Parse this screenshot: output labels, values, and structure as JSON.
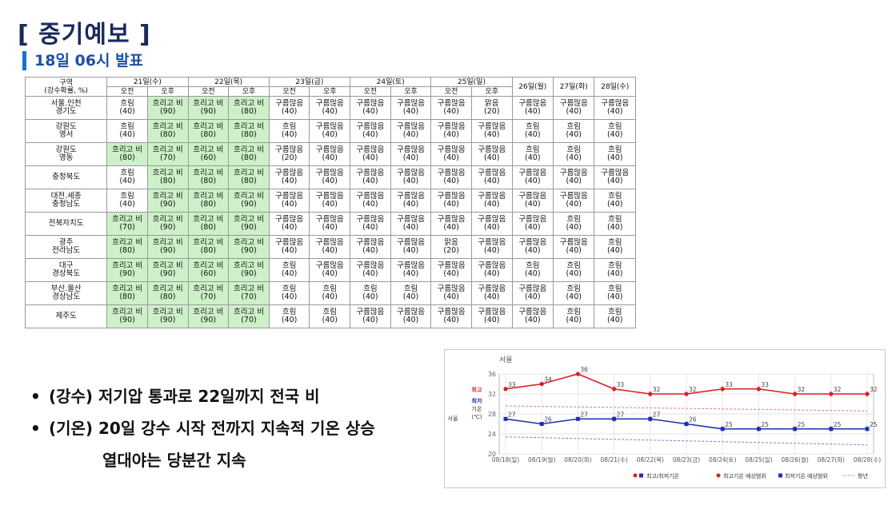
{
  "title": "[ 중기예보 ]",
  "subtitle": "18일 06시 발표",
  "table": {
    "region_header": "구역\n(강수확률, %)",
    "am": "오전",
    "pm": "오후",
    "split_days": [
      "21일(수)",
      "22일(목)",
      "23일(금)",
      "24일(토)",
      "25일(일)"
    ],
    "single_days": [
      "26일(월)",
      "27일(화)",
      "28일(수)"
    ],
    "rows": [
      {
        "region": "서울.인천\n경기도",
        "cells": [
          [
            "흐림",
            "40"
          ],
          [
            "흐리고 비",
            "90"
          ],
          [
            "흐리고 비",
            "90"
          ],
          [
            "흐리고 비",
            "80"
          ],
          [
            "구름많음",
            "40"
          ],
          [
            "구름많음",
            "40"
          ],
          [
            "구름많음",
            "40"
          ],
          [
            "구름많음",
            "40"
          ],
          [
            "구름많음",
            "40"
          ],
          [
            "맑음",
            "20"
          ],
          [
            "구름많음",
            "40"
          ],
          [
            "구름많음",
            "40"
          ],
          [
            "구름많음",
            "40"
          ]
        ]
      },
      {
        "region": "강원도\n영서",
        "cells": [
          [
            "흐림",
            "40"
          ],
          [
            "흐리고 비",
            "80"
          ],
          [
            "흐리고 비",
            "80"
          ],
          [
            "흐리고 비",
            "80"
          ],
          [
            "흐림",
            "40"
          ],
          [
            "구름많음",
            "40"
          ],
          [
            "구름많음",
            "40"
          ],
          [
            "구름많음",
            "40"
          ],
          [
            "구름많음",
            "40"
          ],
          [
            "구름많음",
            "40"
          ],
          [
            "흐림",
            "40"
          ],
          [
            "흐림",
            "40"
          ],
          [
            "흐림",
            "40"
          ]
        ]
      },
      {
        "region": "강원도\n영동",
        "cells": [
          [
            "흐리고 비",
            "80"
          ],
          [
            "흐리고 비",
            "70"
          ],
          [
            "흐리고 비",
            "60"
          ],
          [
            "흐리고 비",
            "80"
          ],
          [
            "구름많음",
            "20"
          ],
          [
            "구름많음",
            "40"
          ],
          [
            "구름많음",
            "40"
          ],
          [
            "구름많음",
            "40"
          ],
          [
            "구름많음",
            "40"
          ],
          [
            "구름많음",
            "40"
          ],
          [
            "흐림",
            "40"
          ],
          [
            "흐림",
            "40"
          ],
          [
            "흐림",
            "40"
          ]
        ]
      },
      {
        "region": "충청북도",
        "cells": [
          [
            "흐림",
            "40"
          ],
          [
            "흐리고 비",
            "80"
          ],
          [
            "흐리고 비",
            "80"
          ],
          [
            "흐리고 비",
            "80"
          ],
          [
            "구름많음",
            "40"
          ],
          [
            "구름많음",
            "40"
          ],
          [
            "구름많음",
            "40"
          ],
          [
            "구름많음",
            "40"
          ],
          [
            "구름많음",
            "40"
          ],
          [
            "구름많음",
            "40"
          ],
          [
            "구름많음",
            "40"
          ],
          [
            "구름많음",
            "40"
          ],
          [
            "구름많음",
            "40"
          ]
        ]
      },
      {
        "region": "대전.세종\n충청남도",
        "cells": [
          [
            "흐림",
            "40"
          ],
          [
            "흐리고 비",
            "90"
          ],
          [
            "흐리고 비",
            "80"
          ],
          [
            "흐리고 비",
            "90"
          ],
          [
            "구름많음",
            "40"
          ],
          [
            "구름많음",
            "40"
          ],
          [
            "구름많음",
            "40"
          ],
          [
            "구름많음",
            "40"
          ],
          [
            "구름많음",
            "40"
          ],
          [
            "구름많음",
            "40"
          ],
          [
            "구름많음",
            "40"
          ],
          [
            "구름많음",
            "40"
          ],
          [
            "흐림",
            "40"
          ]
        ]
      },
      {
        "region": "전북자치도",
        "cells": [
          [
            "흐리고 비",
            "70"
          ],
          [
            "흐리고 비",
            "90"
          ],
          [
            "흐리고 비",
            "80"
          ],
          [
            "흐리고 비",
            "90"
          ],
          [
            "구름많음",
            "40"
          ],
          [
            "구름많음",
            "40"
          ],
          [
            "구름많음",
            "40"
          ],
          [
            "구름많음",
            "40"
          ],
          [
            "구름많음",
            "40"
          ],
          [
            "구름많음",
            "40"
          ],
          [
            "구름많음",
            "40"
          ],
          [
            "흐림",
            "40"
          ],
          [
            "흐림",
            "40"
          ]
        ]
      },
      {
        "region": "광주\n전라남도",
        "cells": [
          [
            "흐리고 비",
            "80"
          ],
          [
            "흐리고 비",
            "90"
          ],
          [
            "흐리고 비",
            "80"
          ],
          [
            "흐리고 비",
            "90"
          ],
          [
            "구름많음",
            "40"
          ],
          [
            "구름많음",
            "40"
          ],
          [
            "구름많음",
            "40"
          ],
          [
            "구름많음",
            "40"
          ],
          [
            "맑음",
            "20"
          ],
          [
            "구름많음",
            "40"
          ],
          [
            "구름많음",
            "40"
          ],
          [
            "구름많음",
            "40"
          ],
          [
            "흐림",
            "40"
          ]
        ]
      },
      {
        "region": "대구\n경상북도",
        "cells": [
          [
            "흐리고 비",
            "90"
          ],
          [
            "흐리고 비",
            "90"
          ],
          [
            "흐리고 비",
            "60"
          ],
          [
            "흐리고 비",
            "90"
          ],
          [
            "흐림",
            "40"
          ],
          [
            "구름많음",
            "40"
          ],
          [
            "구름많음",
            "40"
          ],
          [
            "구름많음",
            "40"
          ],
          [
            "구름많음",
            "40"
          ],
          [
            "구름많음",
            "40"
          ],
          [
            "흐림",
            "40"
          ],
          [
            "흐림",
            "40"
          ],
          [
            "흐림",
            "40"
          ]
        ]
      },
      {
        "region": "부산.울산\n경상남도",
        "cells": [
          [
            "흐리고 비",
            "80"
          ],
          [
            "흐리고 비",
            "80"
          ],
          [
            "흐리고 비",
            "70"
          ],
          [
            "흐리고 비",
            "70"
          ],
          [
            "흐림",
            "40"
          ],
          [
            "흐림",
            "40"
          ],
          [
            "흐림",
            "40"
          ],
          [
            "흐림",
            "40"
          ],
          [
            "구름많음",
            "40"
          ],
          [
            "구름많음",
            "40"
          ],
          [
            "구름많음",
            "40"
          ],
          [
            "흐림",
            "40"
          ],
          [
            "흐림",
            "40"
          ]
        ]
      },
      {
        "region": "제주도",
        "cells": [
          [
            "흐리고 비",
            "90"
          ],
          [
            "흐리고 비",
            "90"
          ],
          [
            "흐리고 비",
            "90"
          ],
          [
            "흐리고 비",
            "70"
          ],
          [
            "흐림",
            "40"
          ],
          [
            "흐림",
            "40"
          ],
          [
            "구름많음",
            "40"
          ],
          [
            "구름많음",
            "40"
          ],
          [
            "구름많음",
            "40"
          ],
          [
            "구름많음",
            "40"
          ],
          [
            "구름많음",
            "40"
          ],
          [
            "흐림",
            "40"
          ],
          [
            "흐림",
            "40"
          ]
        ]
      }
    ]
  },
  "bullets": [
    "(강수) 저기압 통과로 22일까지 전국 비",
    "(기온) 20일 강수 시작 전까지 지속적 기온 상승",
    "열대야는 당분간 지속"
  ],
  "chart_data": {
    "type": "line",
    "title": "서울",
    "ylabel_high": "최고",
    "ylabel_low": "최저",
    "ylabel_temp": "기온",
    "ylabel_unit": "(℃)",
    "side_label": "서울",
    "ylim": [
      20,
      36
    ],
    "yticks": [
      "20",
      "24",
      "28",
      "32",
      "36"
    ],
    "categories": [
      "08/18(일)",
      "08/19(월)",
      "08/20(화)",
      "08/21(수)",
      "08/22(목)",
      "08/23(금)",
      "08/24(토)",
      "08/25(일)",
      "08/26(월)",
      "08/27(화)",
      "08/28(수)"
    ],
    "series": [
      {
        "values": [
          33,
          34,
          36,
          33,
          32,
          32,
          33,
          33,
          32,
          32,
          32
        ],
        "color": "#d81f26"
      },
      {
        "values": [
          27,
          26,
          27,
          27,
          27,
          26,
          25,
          25,
          25,
          25,
          25
        ],
        "color": "#1f2fb0"
      }
    ],
    "legend": [
      "최고/최저기온",
      "최고기온 예상범위",
      "최저기온 예상범위",
      "평년"
    ],
    "grid": true
  }
}
